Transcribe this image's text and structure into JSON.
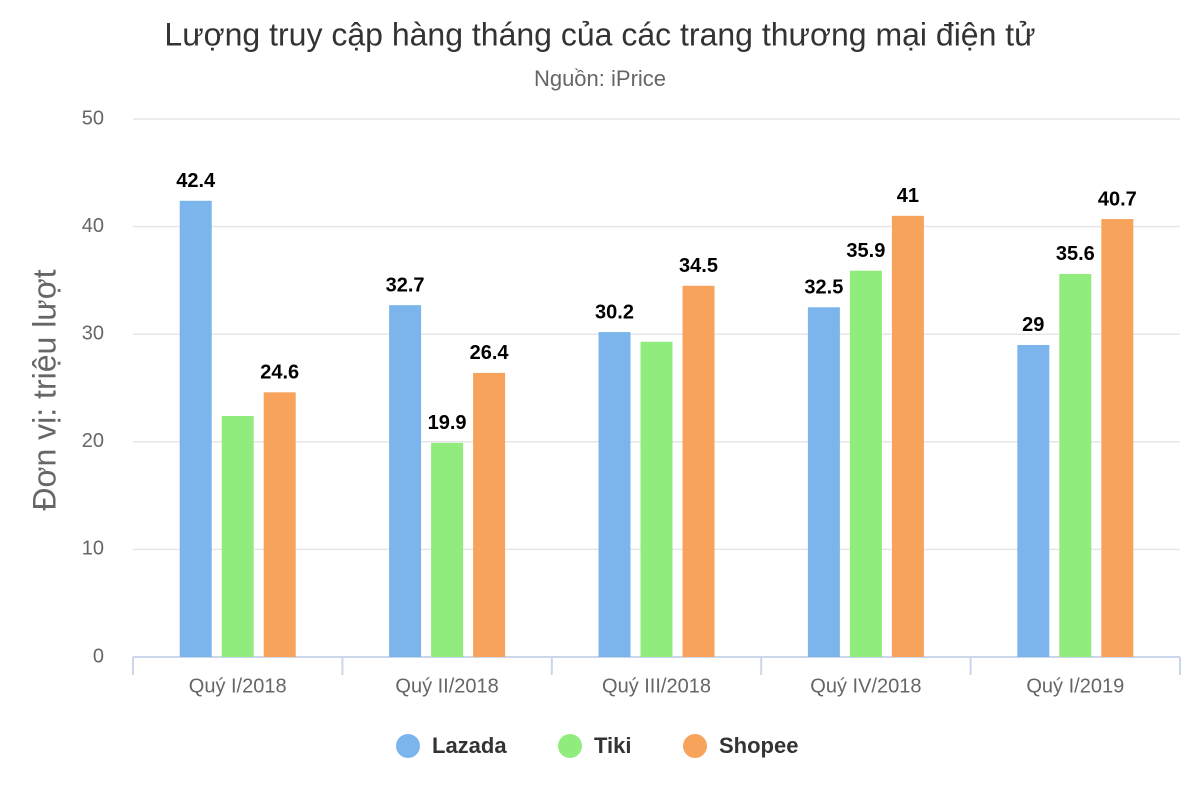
{
  "chart_data": {
    "type": "bar",
    "title": "Lượng truy cập hàng tháng của các trang thương mại điện tử",
    "subtitle": "Nguồn: iPrice",
    "y_label": "Đơn vị: triệu lượt",
    "categories": [
      "Quý I/2018",
      "Quý II/2018",
      "Quý III/2018",
      "Quý IV/2018",
      "Quý I/2019"
    ],
    "series": [
      {
        "name": "Lazada",
        "color": "#7cb5ec",
        "values": [
          42.4,
          32.7,
          30.2,
          32.5,
          29
        ],
        "value_labels": [
          "42.4",
          "32.7",
          "30.2",
          "32.5",
          "29"
        ]
      },
      {
        "name": "Tiki",
        "color": "#90ed7d",
        "values": [
          22.4,
          19.9,
          29.3,
          35.9,
          35.6
        ],
        "value_labels": [
          null,
          "19.9",
          null,
          "35.9",
          "35.6"
        ]
      },
      {
        "name": "Shopee",
        "color": "#f7a35c",
        "values": [
          24.6,
          26.4,
          34.5,
          41,
          40.7
        ],
        "value_labels": [
          "24.6",
          "26.4",
          "34.5",
          "41",
          "40.7"
        ]
      }
    ],
    "ylim": [
      0,
      50
    ],
    "yticks": [
      0,
      10,
      20,
      30,
      40,
      50
    ],
    "grid": true,
    "legend": "bottom"
  }
}
